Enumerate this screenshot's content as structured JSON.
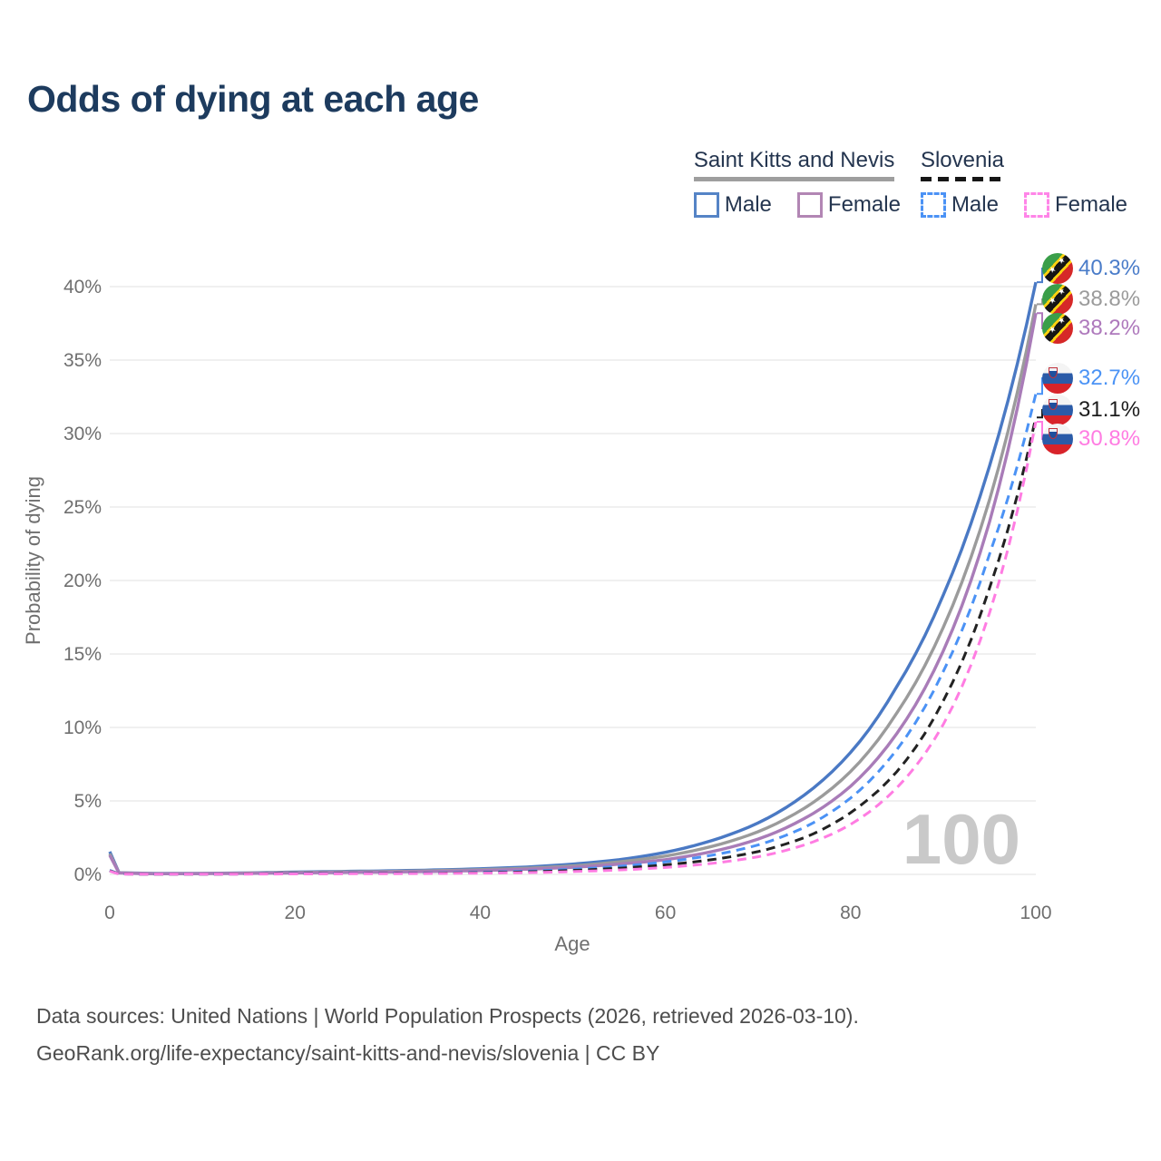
{
  "title": "Odds of dying at each age",
  "legend": {
    "groups": [
      {
        "country": "Saint Kitts and Nevis",
        "line_style": "solid",
        "underline_color": "#9e9e9e",
        "items": [
          {
            "label": "Male",
            "color": "#5584c6",
            "dash": "solid"
          },
          {
            "label": "Female",
            "color": "#b286b4",
            "dash": "solid"
          }
        ]
      },
      {
        "country": "Slovenia",
        "line_style": "dashed",
        "underline_color": "#161616",
        "items": [
          {
            "label": "Male",
            "color": "#4b92f5",
            "dash": "dashed"
          },
          {
            "label": "Female",
            "color": "#ff85e8",
            "dash": "dashed"
          }
        ]
      }
    ]
  },
  "chart_data": {
    "type": "line",
    "title": "Odds of dying at each age",
    "xlabel": "Age",
    "ylabel": "Probability of dying",
    "xlim": [
      0,
      100
    ],
    "ylim": [
      0,
      42
    ],
    "xticks": [
      0,
      20,
      40,
      60,
      80,
      100
    ],
    "yticks": [
      0,
      5,
      10,
      15,
      20,
      25,
      30,
      35,
      40
    ],
    "ytick_format": "percent",
    "grid": true,
    "legend_position": "top-right",
    "age_indicator": "100",
    "ages": [
      0,
      1,
      5,
      10,
      15,
      20,
      25,
      30,
      35,
      40,
      45,
      50,
      55,
      60,
      65,
      70,
      75,
      80,
      85,
      90,
      95,
      100
    ],
    "series": [
      {
        "id": "skn-male",
        "name": "Saint Kitts and Nevis — Male",
        "color": "#4a79c4",
        "style": "solid",
        "end_value_pct": 40.3,
        "values": [
          1.55,
          0.12,
          0.06,
          0.07,
          0.1,
          0.16,
          0.2,
          0.24,
          0.3,
          0.38,
          0.5,
          0.7,
          1.0,
          1.5,
          2.3,
          3.5,
          5.4,
          8.3,
          12.8,
          19.0,
          27.8,
          40.3
        ]
      },
      {
        "id": "skn-all",
        "name": "Saint Kitts and Nevis — Both sexes",
        "color": "#9b9b9b",
        "style": "solid",
        "end_value_pct": 38.8,
        "values": [
          1.4,
          0.11,
          0.05,
          0.06,
          0.09,
          0.13,
          0.17,
          0.2,
          0.25,
          0.32,
          0.42,
          0.58,
          0.85,
          1.25,
          1.9,
          2.9,
          4.5,
          7.0,
          11.0,
          16.8,
          25.5,
          38.8
        ]
      },
      {
        "id": "skn-female",
        "name": "Saint Kitts and Nevis — Female",
        "color": "#a97cb8",
        "style": "solid",
        "end_value_pct": 38.2,
        "values": [
          1.3,
          0.1,
          0.04,
          0.05,
          0.07,
          0.1,
          0.13,
          0.16,
          0.2,
          0.26,
          0.35,
          0.48,
          0.7,
          1.0,
          1.55,
          2.4,
          3.8,
          6.0,
          9.6,
          15.2,
          24.0,
          38.2
        ]
      },
      {
        "id": "slovenia-male",
        "name": "Slovenia — Male",
        "color": "#4b92f5",
        "style": "dashed",
        "end_value_pct": 32.7,
        "values": [
          0.28,
          0.03,
          0.01,
          0.01,
          0.03,
          0.06,
          0.07,
          0.08,
          0.1,
          0.14,
          0.22,
          0.35,
          0.55,
          0.85,
          1.3,
          2.0,
          3.2,
          5.2,
          8.5,
          13.8,
          21.8,
          32.7
        ]
      },
      {
        "id": "slovenia-all",
        "name": "Slovenia — Both sexes",
        "color": "#222222",
        "style": "dashed",
        "end_value_pct": 31.1,
        "values": [
          0.25,
          0.03,
          0.01,
          0.01,
          0.03,
          0.05,
          0.06,
          0.07,
          0.08,
          0.11,
          0.17,
          0.27,
          0.42,
          0.65,
          1.0,
          1.55,
          2.5,
          4.2,
          7.0,
          11.8,
          19.5,
          31.1
        ]
      },
      {
        "id": "slovenia-female",
        "name": "Slovenia — Female",
        "color": "#ff7ce2",
        "style": "dashed",
        "end_value_pct": 30.8,
        "values": [
          0.22,
          0.02,
          0.01,
          0.01,
          0.02,
          0.03,
          0.04,
          0.05,
          0.06,
          0.08,
          0.12,
          0.19,
          0.3,
          0.47,
          0.75,
          1.2,
          2.0,
          3.4,
          5.9,
          10.2,
          17.8,
          30.8
        ]
      }
    ]
  },
  "end_labels": [
    {
      "country": "Saint Kitts and Nevis",
      "value": "40.3%",
      "color": "#4a7cc9"
    },
    {
      "country": "Saint Kitts and Nevis",
      "value": "38.8%",
      "color": "#9b9b9b"
    },
    {
      "country": "Saint Kitts and Nevis",
      "value": "38.2%",
      "color": "#ae79bc"
    },
    {
      "country": "Slovenia",
      "value": "32.7%",
      "color": "#4b93f5"
    },
    {
      "country": "Slovenia",
      "value": "31.1%",
      "color": "#1c1c1c"
    },
    {
      "country": "Slovenia",
      "value": "30.8%",
      "color": "#ff7ce2"
    }
  ],
  "footer": {
    "line1": "Data sources: United Nations | World Population Prospects (2026, retrieved 2026-03-10).",
    "line2": "GeoRank.org/life-expectancy/saint-kitts-and-nevis/slovenia | CC BY"
  }
}
